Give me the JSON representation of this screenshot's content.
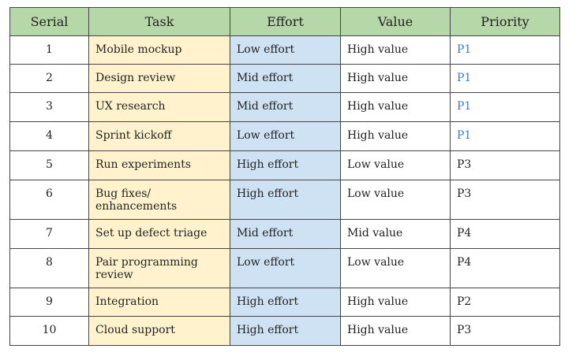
{
  "table": {
    "header": [
      "Serial",
      "Task",
      "Effort",
      "Value",
      "Priority"
    ],
    "rows": [
      [
        "1",
        "Mobile mockup",
        "Low effort",
        "High value",
        "P1"
      ],
      [
        "2",
        "Design review",
        "Mid effort",
        "High value",
        "P1"
      ],
      [
        "3",
        "UX research",
        "Mid effort",
        "High value",
        "P1"
      ],
      [
        "4",
        "Sprint kickoff",
        "Low effort",
        "High value",
        "P1"
      ],
      [
        "5",
        "Run experiments",
        "High effort",
        "Low value",
        "P3"
      ],
      [
        "6",
        "Bug fixes/\nenhancements",
        "High effort",
        "Low value",
        "P3"
      ],
      [
        "7",
        "Set up defect triage",
        "Mid effort",
        "Mid value",
        "P4"
      ],
      [
        "8",
        "Pair programming\nreview",
        "Low effort",
        "Low value",
        "P4"
      ],
      [
        "9",
        "Integration",
        "High effort",
        "High value",
        "P2"
      ],
      [
        "10",
        "Cloud support",
        "High effort",
        "High value",
        "P3"
      ]
    ],
    "priority_colors": [
      "#3c78d8",
      "#3c78d8",
      "#3c78d8",
      "#3c78d8",
      "#222222",
      "#222222",
      "#222222",
      "#222222",
      "#222222",
      "#222222"
    ]
  }
}
